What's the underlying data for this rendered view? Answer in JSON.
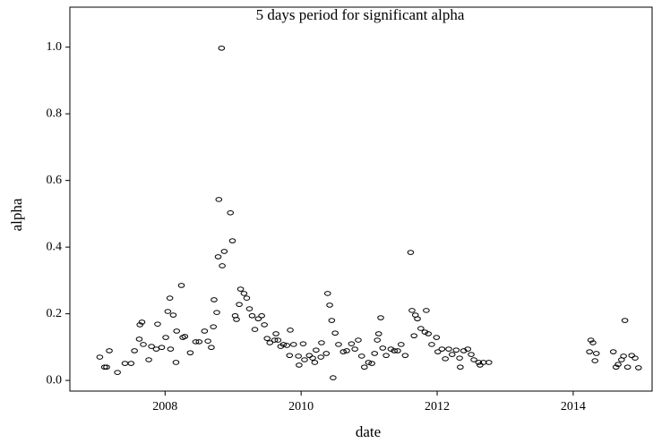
{
  "chart_data": {
    "type": "scatter",
    "title": "5 days period for significant alpha",
    "x_label": "date",
    "y_label": "alpha",
    "xlim": [
      2006.6,
      2015.16
    ],
    "xticks": [
      2008,
      2010,
      2012,
      2014
    ],
    "ylim": [
      -0.032,
      1.12
    ],
    "yticks": [
      {
        "value": 0,
        "label": "0.0"
      },
      0.2,
      0.4,
      0.6,
      0.8,
      {
        "value": 1,
        "label": "1.0"
      }
    ],
    "grid": false,
    "color": "#000000",
    "x": [
      2007.04,
      2007.11,
      2007.14,
      2007.18,
      2007.3,
      2007.41,
      2007.5,
      2007.55,
      2007.62,
      2007.63,
      2007.66,
      2007.68,
      2007.76,
      2007.8,
      2007.87,
      2007.89,
      2007.95,
      2008.01,
      2008.04,
      2008.07,
      2008.08,
      2008.12,
      2008.16,
      2008.17,
      2008.24,
      2008.26,
      2008.29,
      2008.37,
      2008.45,
      2008.5,
      2008.58,
      2008.63,
      2008.68,
      2008.71,
      2008.72,
      2008.76,
      2008.78,
      2008.79,
      2008.83,
      2008.84,
      2008.87,
      2008.96,
      2008.99,
      2009.03,
      2009.05,
      2009.09,
      2009.11,
      2009.16,
      2009.2,
      2009.24,
      2009.28,
      2009.32,
      2009.37,
      2009.42,
      2009.46,
      2009.5,
      2009.54,
      2009.61,
      2009.63,
      2009.66,
      2009.7,
      2009.74,
      2009.79,
      2009.83,
      2009.84,
      2009.89,
      2009.96,
      2009.97,
      2010.03,
      2010.05,
      2010.12,
      2010.17,
      2010.2,
      2010.22,
      2010.29,
      2010.3,
      2010.37,
      2010.39,
      2010.42,
      2010.45,
      2010.47,
      2010.5,
      2010.55,
      2010.62,
      2010.67,
      2010.74,
      2010.79,
      2010.84,
      2010.89,
      2010.93,
      2010.99,
      2011.04,
      2011.08,
      2011.12,
      2011.14,
      2011.17,
      2011.2,
      2011.25,
      2011.32,
      2011.37,
      2011.42,
      2011.47,
      2011.53,
      2011.61,
      2011.63,
      2011.66,
      2011.68,
      2011.71,
      2011.76,
      2011.82,
      2011.84,
      2011.87,
      2011.92,
      2011.99,
      2012.01,
      2012.07,
      2012.12,
      2012.17,
      2012.22,
      2012.28,
      2012.33,
      2012.34,
      2012.39,
      2012.45,
      2012.5,
      2012.54,
      2012.61,
      2012.63,
      2012.68,
      2012.76,
      2014.24,
      2014.26,
      2014.29,
      2014.32,
      2014.34,
      2014.59,
      2014.63,
      2014.66,
      2014.71,
      2014.74,
      2014.76,
      2014.8,
      2014.86,
      2014.91,
      2014.96
    ],
    "values": [
      0.07,
      0.04,
      0.04,
      0.089,
      0.024,
      0.051,
      0.051,
      0.089,
      0.124,
      0.167,
      0.175,
      0.108,
      0.062,
      0.102,
      0.094,
      0.169,
      0.099,
      0.129,
      0.207,
      0.247,
      0.094,
      0.196,
      0.054,
      0.148,
      0.285,
      0.129,
      0.132,
      0.083,
      0.116,
      0.116,
      0.148,
      0.118,
      0.099,
      0.161,
      0.242,
      0.204,
      0.371,
      0.543,
      0.997,
      0.344,
      0.387,
      0.503,
      0.419,
      0.194,
      0.183,
      0.228,
      0.274,
      0.261,
      0.247,
      0.215,
      0.194,
      0.153,
      0.185,
      0.194,
      0.167,
      0.126,
      0.113,
      0.121,
      0.14,
      0.121,
      0.102,
      0.108,
      0.105,
      0.075,
      0.151,
      0.108,
      0.073,
      0.046,
      0.11,
      0.062,
      0.075,
      0.067,
      0.054,
      0.091,
      0.07,
      0.113,
      0.081,
      0.261,
      0.226,
      0.18,
      0.008,
      0.142,
      0.108,
      0.086,
      0.089,
      0.11,
      0.094,
      0.121,
      0.073,
      0.04,
      0.054,
      0.051,
      0.081,
      0.121,
      0.14,
      0.188,
      0.097,
      0.075,
      0.094,
      0.089,
      0.089,
      0.108,
      0.075,
      0.384,
      0.21,
      0.134,
      0.196,
      0.185,
      0.156,
      0.145,
      0.21,
      0.14,
      0.108,
      0.129,
      0.086,
      0.094,
      0.065,
      0.094,
      0.078,
      0.091,
      0.067,
      0.04,
      0.089,
      0.094,
      0.078,
      0.062,
      0.054,
      0.046,
      0.054,
      0.054,
      0.086,
      0.121,
      0.113,
      0.059,
      0.081,
      0.086,
      0.04,
      0.048,
      0.062,
      0.073,
      0.18,
      0.04,
      0.075,
      0.067,
      0.038
    ]
  }
}
